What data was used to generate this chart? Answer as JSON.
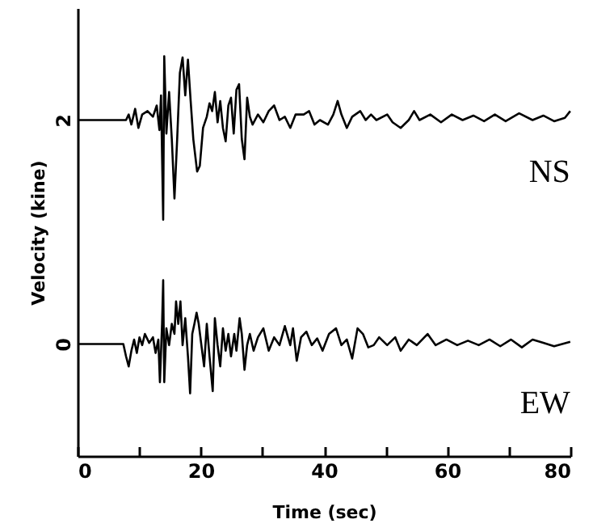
{
  "chart_data": {
    "type": "line",
    "xlabel": "Time (sec)",
    "ylabel": "Velocity (kine)",
    "xlim": [
      0,
      80
    ],
    "ylim": [
      -1,
      3
    ],
    "xticks": [
      0,
      {
        "value": 10,
        "label": null
      },
      20,
      {
        "value": 30,
        "label": null
      },
      40,
      {
        "value": 50,
        "label": null
      },
      60,
      {
        "value": 70,
        "label": null
      },
      80
    ],
    "yticks": [
      0,
      2
    ],
    "grid": false,
    "marker": "none",
    "line_style": "solid",
    "series": [
      {
        "name": "NS",
        "color": "#000000",
        "x": [
          0,
          7.87,
          8.3,
          8.74,
          9.35,
          9.88,
          10.49,
          11.36,
          12.24,
          12.85,
          13.29,
          13.55,
          13.9,
          14.07,
          14.42,
          14.86,
          15.3,
          15.73,
          16.17,
          16.61,
          17.05,
          17.48,
          17.92,
          18.36,
          18.79,
          19.41,
          19.84,
          20.37,
          20.98,
          21.42,
          21.85,
          22.29,
          22.73,
          23.16,
          23.6,
          24.04,
          24.48,
          24.91,
          25.35,
          25.79,
          26.22,
          26.66,
          27.1,
          27.53,
          27.97,
          28.41,
          29.28,
          30.16,
          31.03,
          31.91,
          32.78,
          33.65,
          34.53,
          35.4,
          36.71,
          37.59,
          38.46,
          39.34,
          40.65,
          41.52,
          42.22,
          42.83,
          43.71,
          44.58,
          45.89,
          46.77,
          47.64,
          48.51,
          50.26,
          51.14,
          52.45,
          53.76,
          54.63,
          55.51,
          57.26,
          59,
          60.75,
          62.5,
          64.25,
          65.99,
          67.74,
          69.49,
          71.68,
          73.86,
          75.61,
          77.36,
          79.11,
          79.98
        ],
        "values": [
          2,
          2,
          2.05,
          1.96,
          2.1,
          1.93,
          2.05,
          2.08,
          2.03,
          2.13,
          1.91,
          2.22,
          1.11,
          2.57,
          1.88,
          2.25,
          1.83,
          1.3,
          1.83,
          2.42,
          2.56,
          2.22,
          2.54,
          2.17,
          1.83,
          1.54,
          1.59,
          1.93,
          2.03,
          2.15,
          2.08,
          2.25,
          1.98,
          2.17,
          1.93,
          1.81,
          2.13,
          2.2,
          1.88,
          2.27,
          2.32,
          1.83,
          1.65,
          2.2,
          2.03,
          1.96,
          2.05,
          1.98,
          2.08,
          2.13,
          2,
          2.03,
          1.93,
          2.05,
          2.05,
          2.08,
          1.96,
          2,
          1.96,
          2.05,
          2.17,
          2.05,
          1.93,
          2.03,
          2.08,
          2,
          2.05,
          2,
          2.05,
          1.98,
          1.93,
          2,
          2.08,
          2,
          2.05,
          1.98,
          2.05,
          2,
          2.04,
          1.99,
          2.05,
          1.99,
          2.06,
          2,
          2.04,
          1.99,
          2.02,
          2.08
        ]
      },
      {
        "name": "EW",
        "color": "#000000",
        "x": [
          0,
          7.43,
          7.87,
          8.3,
          8.74,
          9.18,
          9.62,
          10.05,
          10.49,
          10.93,
          11.63,
          12.24,
          12.67,
          13.11,
          13.37,
          13.72,
          13.9,
          14.07,
          14.42,
          14.86,
          15.3,
          15.73,
          15.99,
          16.35,
          16.7,
          17.05,
          17.48,
          17.92,
          18.27,
          18.62,
          18.97,
          19.32,
          19.67,
          20.1,
          20.54,
          20.98,
          21.42,
          21.94,
          22.29,
          22.73,
          23.16,
          23.6,
          24.04,
          24.48,
          24.91,
          25.44,
          25.79,
          26.31,
          26.66,
          27.1,
          27.53,
          27.97,
          28.58,
          29.28,
          30.16,
          31.03,
          31.91,
          32.78,
          33.65,
          34.53,
          34.97,
          35.58,
          36.28,
          37.15,
          38.02,
          38.9,
          39.77,
          40.82,
          41.96,
          42.83,
          43.71,
          44.58,
          45.45,
          46.33,
          47.2,
          48.08,
          48.95,
          50.26,
          51.57,
          52.45,
          53.76,
          55.07,
          56.82,
          58.13,
          59.88,
          61.63,
          63.37,
          65.12,
          66.87,
          68.62,
          70.37,
          72.12,
          73.86,
          75.61,
          77.36,
          79.98
        ],
        "values": [
          0,
          0,
          -0.11,
          -0.2,
          -0.06,
          0.04,
          -0.08,
          0.06,
          -0.01,
          0.09,
          0.01,
          0.06,
          -0.08,
          0.04,
          -0.34,
          0.18,
          0.57,
          -0.34,
          0.14,
          -0.01,
          0.18,
          0.09,
          0.38,
          0.18,
          0.38,
          -0.01,
          0.23,
          -0.11,
          -0.44,
          0.09,
          0.18,
          0.28,
          0.18,
          -0.01,
          -0.2,
          0.18,
          -0.11,
          -0.42,
          0.23,
          -0.01,
          -0.2,
          0.14,
          -0.06,
          0.09,
          -0.11,
          0.09,
          -0.06,
          0.23,
          0.09,
          -0.23,
          -0.01,
          0.09,
          -0.06,
          0.06,
          0.14,
          -0.06,
          0.06,
          -0.01,
          0.16,
          -0.01,
          0.14,
          -0.15,
          0.06,
          0.11,
          -0.01,
          0.05,
          -0.06,
          0.09,
          0.14,
          -0.01,
          0.04,
          -0.13,
          0.14,
          0.09,
          -0.03,
          -0.01,
          0.06,
          -0.01,
          0.06,
          -0.06,
          0.04,
          -0.01,
          0.09,
          -0.01,
          0.04,
          -0.01,
          0.03,
          -0.01,
          0.04,
          -0.02,
          0.04,
          -0.03,
          0.04,
          0.01,
          -0.02,
          0.02
        ]
      }
    ]
  }
}
